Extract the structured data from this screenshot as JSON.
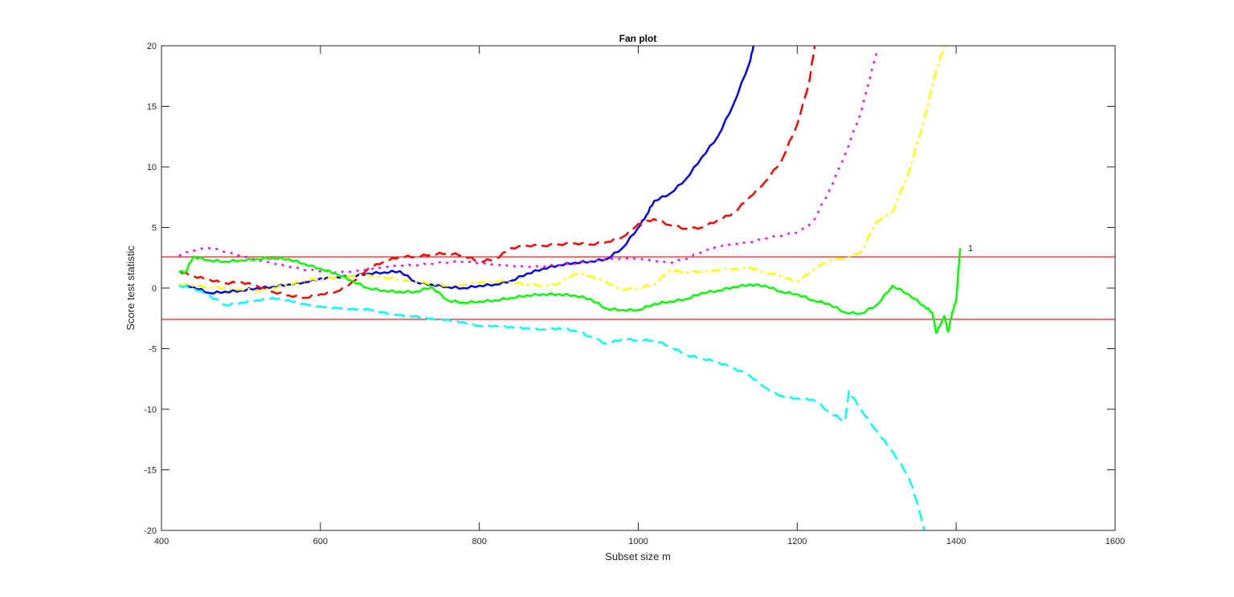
{
  "chart_data": {
    "type": "line",
    "title": "Fan plot",
    "xlabel": "Subset size m",
    "ylabel": "Score test statistic",
    "xlim": [
      400,
      1600
    ],
    "ylim": [
      -20,
      20
    ],
    "xticks": [
      400,
      600,
      800,
      1000,
      1200,
      1400,
      1600
    ],
    "yticks": [
      -20,
      -15,
      -10,
      -5,
      0,
      5,
      10,
      15,
      20
    ],
    "grid": false,
    "legend": null,
    "reference_lines": [
      {
        "y": 2.58,
        "color": "#ff0000"
      },
      {
        "y": -2.58,
        "color": "#ff0000"
      }
    ],
    "annotations": [
      {
        "text": "1",
        "x": 1415,
        "y": 3.3
      }
    ],
    "series": [
      {
        "name": "blue-solid",
        "color": "#0000ff",
        "style": "solid",
        "x": [
          422,
          440,
          460,
          480,
          500,
          520,
          540,
          560,
          580,
          600,
          620,
          640,
          660,
          680,
          700,
          720,
          740,
          760,
          780,
          800,
          820,
          840,
          860,
          880,
          900,
          920,
          940,
          960,
          980,
          1000,
          1010,
          1020,
          1040,
          1060,
          1080,
          1100,
          1120,
          1140,
          1145
        ],
        "values": [
          0.3,
          0.1,
          -0.4,
          -0.3,
          -0.2,
          0.0,
          0.1,
          0.3,
          0.5,
          0.8,
          0.9,
          1.0,
          1.2,
          1.3,
          1.4,
          0.5,
          0.3,
          0.1,
          0.0,
          0.2,
          0.3,
          0.6,
          1.2,
          1.6,
          1.9,
          2.1,
          2.2,
          2.4,
          3.3,
          5.0,
          6.0,
          7.2,
          7.8,
          9.0,
          10.8,
          12.5,
          15.2,
          18.6,
          20.0
        ]
      },
      {
        "name": "red-dashed",
        "color": "#ff0000",
        "style": "dashed",
        "x": [
          422,
          440,
          460,
          480,
          500,
          520,
          540,
          560,
          580,
          600,
          620,
          640,
          660,
          680,
          700,
          720,
          740,
          760,
          780,
          800,
          820,
          840,
          860,
          880,
          900,
          920,
          940,
          960,
          980,
          1000,
          1020,
          1040,
          1060,
          1080,
          1100,
          1120,
          1140,
          1160,
          1180,
          1200,
          1215,
          1222
        ],
        "values": [
          1.4,
          1.0,
          0.7,
          0.4,
          0.5,
          0.2,
          -0.3,
          -0.6,
          -0.8,
          -0.5,
          -0.3,
          0.5,
          1.6,
          2.2,
          2.6,
          2.6,
          2.8,
          2.9,
          2.7,
          2.2,
          2.4,
          3.3,
          3.5,
          3.5,
          3.6,
          3.7,
          3.6,
          3.8,
          4.2,
          5.3,
          5.7,
          5.2,
          4.9,
          5.0,
          5.6,
          6.2,
          7.5,
          8.8,
          10.5,
          13.5,
          17.0,
          20.0
        ]
      },
      {
        "name": "magenta-dotted",
        "color": "#ff00ff",
        "style": "dotted",
        "x": [
          422,
          440,
          460,
          480,
          500,
          520,
          540,
          560,
          580,
          600,
          620,
          640,
          660,
          680,
          700,
          720,
          740,
          760,
          780,
          800,
          820,
          840,
          860,
          880,
          900,
          920,
          940,
          960,
          980,
          1000,
          1020,
          1040,
          1060,
          1080,
          1100,
          1120,
          1140,
          1160,
          1180,
          1200,
          1220,
          1240,
          1260,
          1280,
          1290,
          1300
        ],
        "values": [
          2.7,
          3.1,
          3.3,
          3.0,
          2.7,
          2.4,
          2.1,
          1.8,
          1.5,
          1.4,
          1.3,
          1.4,
          1.6,
          1.8,
          1.9,
          1.9,
          2.0,
          2.1,
          2.2,
          2.1,
          2.0,
          1.9,
          1.8,
          1.8,
          1.9,
          2.0,
          2.2,
          2.4,
          2.5,
          2.5,
          2.3,
          2.1,
          2.4,
          3.0,
          3.5,
          3.7,
          3.8,
          4.1,
          4.3,
          4.6,
          5.5,
          8.0,
          11.0,
          14.5,
          17.0,
          19.5
        ]
      },
      {
        "name": "yellow-dashdot",
        "color": "#ffff00",
        "style": "dashdot",
        "x": [
          422,
          440,
          460,
          480,
          500,
          520,
          540,
          560,
          580,
          600,
          620,
          640,
          660,
          680,
          700,
          720,
          740,
          760,
          780,
          800,
          820,
          840,
          860,
          880,
          900,
          920,
          940,
          960,
          980,
          1000,
          1020,
          1040,
          1060,
          1080,
          1100,
          1120,
          1140,
          1160,
          1180,
          1200,
          1220,
          1240,
          1260,
          1280,
          1300,
          1320,
          1340,
          1360,
          1375,
          1385
        ],
        "values": [
          0.3,
          0.2,
          0.1,
          0.0,
          -0.1,
          -0.2,
          0.0,
          0.3,
          0.6,
          0.8,
          0.9,
          1.0,
          1.1,
          0.9,
          0.7,
          0.5,
          0.4,
          0.2,
          0.3,
          0.5,
          0.6,
          0.5,
          0.3,
          0.2,
          0.4,
          1.2,
          1.0,
          0.5,
          -0.1,
          0.0,
          0.3,
          1.5,
          1.3,
          1.4,
          1.5,
          1.6,
          1.7,
          1.3,
          1.0,
          0.5,
          1.5,
          2.3,
          2.5,
          3.0,
          5.5,
          6.3,
          9.5,
          14.0,
          18.0,
          20.0
        ]
      },
      {
        "name": "green-solid",
        "color": "#00ff00",
        "style": "solid",
        "x": [
          422,
          430,
          440,
          460,
          480,
          500,
          520,
          540,
          560,
          580,
          600,
          620,
          640,
          660,
          680,
          700,
          720,
          740,
          760,
          780,
          800,
          820,
          840,
          860,
          880,
          900,
          920,
          940,
          960,
          980,
          1000,
          1020,
          1040,
          1060,
          1080,
          1100,
          1120,
          1140,
          1160,
          1180,
          1200,
          1220,
          1240,
          1260,
          1280,
          1300,
          1320,
          1340,
          1360,
          1370,
          1375,
          1380,
          1385,
          1390,
          1395,
          1400,
          1405
        ],
        "values": [
          1.4,
          1.3,
          2.6,
          2.3,
          2.2,
          2.3,
          2.4,
          2.5,
          2.4,
          2.0,
          1.6,
          1.2,
          0.6,
          0.0,
          -0.2,
          -0.3,
          -0.3,
          0.1,
          -1.0,
          -1.2,
          -1.1,
          -1.0,
          -0.8,
          -0.6,
          -0.5,
          -0.5,
          -0.6,
          -0.9,
          -1.7,
          -1.8,
          -1.8,
          -1.3,
          -1.1,
          -0.9,
          -0.4,
          -0.2,
          0.1,
          0.3,
          0.2,
          -0.3,
          -0.5,
          -1.0,
          -1.3,
          -2.0,
          -2.1,
          -1.4,
          0.2,
          -0.5,
          -1.5,
          -2.0,
          -3.7,
          -3.0,
          -2.3,
          -3.6,
          -2.0,
          -1.0,
          3.3
        ]
      },
      {
        "name": "cyan-dashed",
        "color": "#00ffff",
        "style": "dashed",
        "x": [
          422,
          440,
          460,
          480,
          500,
          520,
          540,
          560,
          580,
          600,
          620,
          640,
          660,
          680,
          700,
          720,
          740,
          760,
          780,
          800,
          820,
          840,
          860,
          880,
          900,
          920,
          940,
          960,
          980,
          1000,
          1020,
          1040,
          1060,
          1080,
          1100,
          1120,
          1140,
          1160,
          1180,
          1200,
          1220,
          1240,
          1260,
          1265,
          1280,
          1300,
          1320,
          1340,
          1350,
          1360
        ],
        "values": [
          0.2,
          0.0,
          -0.6,
          -1.4,
          -1.2,
          -1.0,
          -0.8,
          -1.0,
          -1.3,
          -1.5,
          -1.6,
          -1.7,
          -1.7,
          -2.0,
          -2.2,
          -2.3,
          -2.5,
          -2.6,
          -2.8,
          -3.1,
          -3.1,
          -3.2,
          -3.3,
          -3.4,
          -3.3,
          -3.5,
          -4.0,
          -4.6,
          -4.2,
          -4.3,
          -4.3,
          -4.8,
          -5.5,
          -5.8,
          -6.1,
          -6.6,
          -7.2,
          -8.2,
          -8.9,
          -9.1,
          -9.2,
          -10.2,
          -11.0,
          -8.5,
          -10.0,
          -11.8,
          -13.5,
          -15.5,
          -17.5,
          -20.0
        ]
      }
    ]
  }
}
